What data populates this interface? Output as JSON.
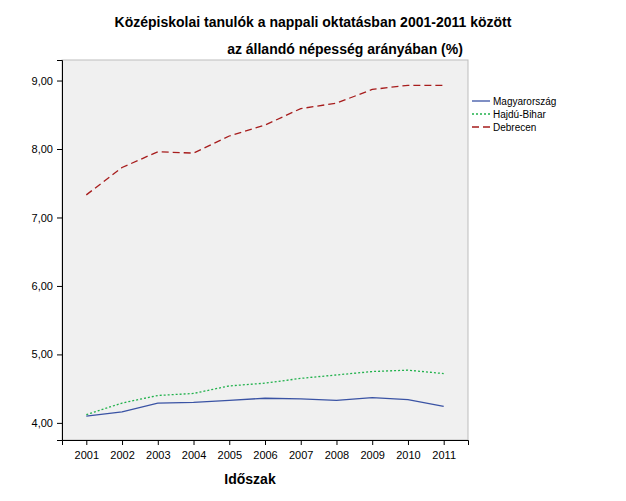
{
  "chart_data": {
    "type": "line",
    "title": "Középiskolai tanulók a nappali oktatásban  2001-2011 között",
    "subtitle": "az állandó népesség arányában (%)",
    "x_label": "Időszak",
    "categories": [
      "2001",
      "2002",
      "2003",
      "2004",
      "2005",
      "2006",
      "2007",
      "2008",
      "2009",
      "2010",
      "2011"
    ],
    "series": [
      {
        "name": "Magyarország",
        "color": "#3a53a4",
        "line_style": "solid",
        "values": [
          4.1,
          4.16,
          4.29,
          4.3,
          4.33,
          4.36,
          4.35,
          4.33,
          4.37,
          4.34,
          4.24
        ]
      },
      {
        "name": "Hajdú-Bihar",
        "color": "#21b14c",
        "line_style": "dotted",
        "values": [
          4.12,
          4.29,
          4.4,
          4.43,
          4.54,
          4.58,
          4.65,
          4.7,
          4.75,
          4.77,
          4.72
        ]
      },
      {
        "name": "Debrecen",
        "color": "#a71c1c",
        "line_style": "dashed",
        "values": [
          7.33,
          7.73,
          7.96,
          7.94,
          8.19,
          8.35,
          8.59,
          8.67,
          8.87,
          8.93,
          8.93
        ]
      }
    ],
    "ylim": [
      3.75,
      9.3
    ],
    "yticks": [
      {
        "value": 4,
        "label": "4,00"
      },
      {
        "value": 5,
        "label": "5,00"
      },
      {
        "value": 6,
        "label": "6,00"
      },
      {
        "value": 7,
        "label": "7,00"
      },
      {
        "value": 8,
        "label": "8,00"
      },
      {
        "value": 9,
        "label": "9,00"
      }
    ],
    "grid": false,
    "legend": "top-right"
  }
}
